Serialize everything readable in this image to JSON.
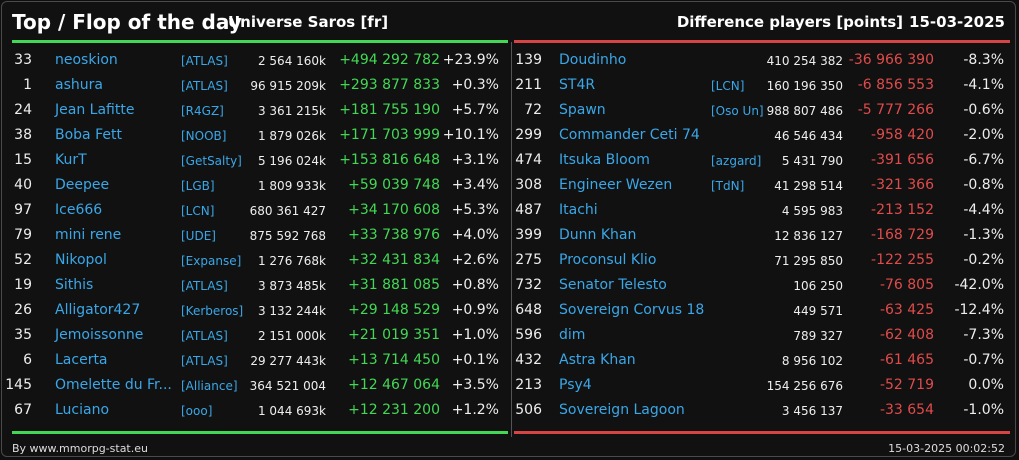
{
  "header": {
    "title": "Top / Flop of the day",
    "subtitle": "Universe Saros [fr]",
    "diff_label": "Difference players [points]",
    "date": "15-03-2025"
  },
  "colors": {
    "positive": "#42d855",
    "negative": "#e04b4b",
    "link": "#3aa7e8"
  },
  "top": [
    {
      "rank": "33",
      "name": "neoskion",
      "alliance": "[ATLAS]",
      "players": "2 564 160k",
      "diff": "+494 292 782",
      "pct": "+23.9%"
    },
    {
      "rank": "1",
      "name": "ashura",
      "alliance": "[ATLAS]",
      "players": "96 915 209k",
      "diff": "+293 877 833",
      "pct": "+0.3%"
    },
    {
      "rank": "24",
      "name": "Jean Lafitte",
      "alliance": "[R4GZ]",
      "players": "3 361 215k",
      "diff": "+181 755 190",
      "pct": "+5.7%"
    },
    {
      "rank": "38",
      "name": "Boba Fett",
      "alliance": "[NOOB]",
      "players": "1 879 026k",
      "diff": "+171 703 999",
      "pct": "+10.1%"
    },
    {
      "rank": "15",
      "name": "KurT",
      "alliance": "[GetSalty]",
      "players": "5 196 024k",
      "diff": "+153 816 648",
      "pct": "+3.1%"
    },
    {
      "rank": "40",
      "name": "Deepee",
      "alliance": "[LGB]",
      "players": "1 809 933k",
      "diff": "+59 039 748",
      "pct": "+3.4%"
    },
    {
      "rank": "97",
      "name": "Ice666",
      "alliance": "[LCN]",
      "players": "680 361 427",
      "diff": "+34 170 608",
      "pct": "+5.3%"
    },
    {
      "rank": "79",
      "name": "mini rene",
      "alliance": "[UDE]",
      "players": "875 592 768",
      "diff": "+33 738 976",
      "pct": "+4.0%"
    },
    {
      "rank": "52",
      "name": "Nikopol",
      "alliance": "[Expanse]",
      "players": "1 276 768k",
      "diff": "+32 431 834",
      "pct": "+2.6%"
    },
    {
      "rank": "19",
      "name": "Sithis",
      "alliance": "[ATLAS]",
      "players": "3 873 485k",
      "diff": "+31 881 085",
      "pct": "+0.8%"
    },
    {
      "rank": "26",
      "name": "Alligator427",
      "alliance": "[Kerberos]",
      "players": "3 132 244k",
      "diff": "+29 148 529",
      "pct": "+0.9%"
    },
    {
      "rank": "35",
      "name": "Jemoissonne",
      "alliance": "[ATLAS]",
      "players": "2 151 000k",
      "diff": "+21 019 351",
      "pct": "+1.0%"
    },
    {
      "rank": "6",
      "name": "Lacerta",
      "alliance": "[ATLAS]",
      "players": "29 277 443k",
      "diff": "+13 714 450",
      "pct": "+0.1%"
    },
    {
      "rank": "145",
      "name": "Omelette du Fr...",
      "alliance": "[Alliance]",
      "players": "364 521 004",
      "diff": "+12 467 064",
      "pct": "+3.5%"
    },
    {
      "rank": "67",
      "name": "Luciano",
      "alliance": "[ooo]",
      "players": "1 044 693k",
      "diff": "+12 231 200",
      "pct": "+1.2%"
    }
  ],
  "flop": [
    {
      "rank": "139",
      "name": "Doudinho",
      "alliance": "",
      "players": "410 254 382",
      "diff": "-36 966 390",
      "pct": "-8.3%"
    },
    {
      "rank": "211",
      "name": "ST4R",
      "alliance": "[LCN]",
      "players": "160 196 350",
      "diff": "-6 856 553",
      "pct": "-4.1%"
    },
    {
      "rank": "72",
      "name": "Spawn",
      "alliance": "[Oso Un]",
      "players": "988 807 486",
      "diff": "-5 777 266",
      "pct": "-0.6%"
    },
    {
      "rank": "299",
      "name": "Commander Ceti 74",
      "alliance": "",
      "players": "46 546 434",
      "diff": "-958 420",
      "pct": "-2.0%"
    },
    {
      "rank": "474",
      "name": "Itsuka Bloom",
      "alliance": "[azgard]",
      "players": "5 431 790",
      "diff": "-391 656",
      "pct": "-6.7%"
    },
    {
      "rank": "308",
      "name": "Engineer Wezen",
      "alliance": "[TdN]",
      "players": "41 298 514",
      "diff": "-321 366",
      "pct": "-0.8%"
    },
    {
      "rank": "487",
      "name": "Itachi",
      "alliance": "",
      "players": "4 595 983",
      "diff": "-213 152",
      "pct": "-4.4%"
    },
    {
      "rank": "399",
      "name": "Dunn Khan",
      "alliance": "",
      "players": "12 836 127",
      "diff": "-168 729",
      "pct": "-1.3%"
    },
    {
      "rank": "275",
      "name": "Proconsul Klio",
      "alliance": "",
      "players": "71 295 850",
      "diff": "-122 255",
      "pct": "-0.2%"
    },
    {
      "rank": "732",
      "name": "Senator Telesto",
      "alliance": "",
      "players": "106 250",
      "diff": "-76 805",
      "pct": "-42.0%"
    },
    {
      "rank": "648",
      "name": "Sovereign Corvus 18",
      "alliance": "",
      "players": "449 571",
      "diff": "-63 425",
      "pct": "-12.4%"
    },
    {
      "rank": "596",
      "name": "dim",
      "alliance": "",
      "players": "789 327",
      "diff": "-62 408",
      "pct": "-7.3%"
    },
    {
      "rank": "432",
      "name": "Astra Khan",
      "alliance": "",
      "players": "8 956 102",
      "diff": "-61 465",
      "pct": "-0.7%"
    },
    {
      "rank": "213",
      "name": "Psy4",
      "alliance": "",
      "players": "154 256 676",
      "diff": "-52 719",
      "pct": "0.0%"
    },
    {
      "rank": "506",
      "name": "Sovereign Lagoon",
      "alliance": "",
      "players": "3 456 137",
      "diff": "-33 654",
      "pct": "-1.0%"
    }
  ],
  "footer": {
    "source": "By www.mmorpg-stat.eu",
    "timestamp": "15-03-2025 00:02:52"
  }
}
